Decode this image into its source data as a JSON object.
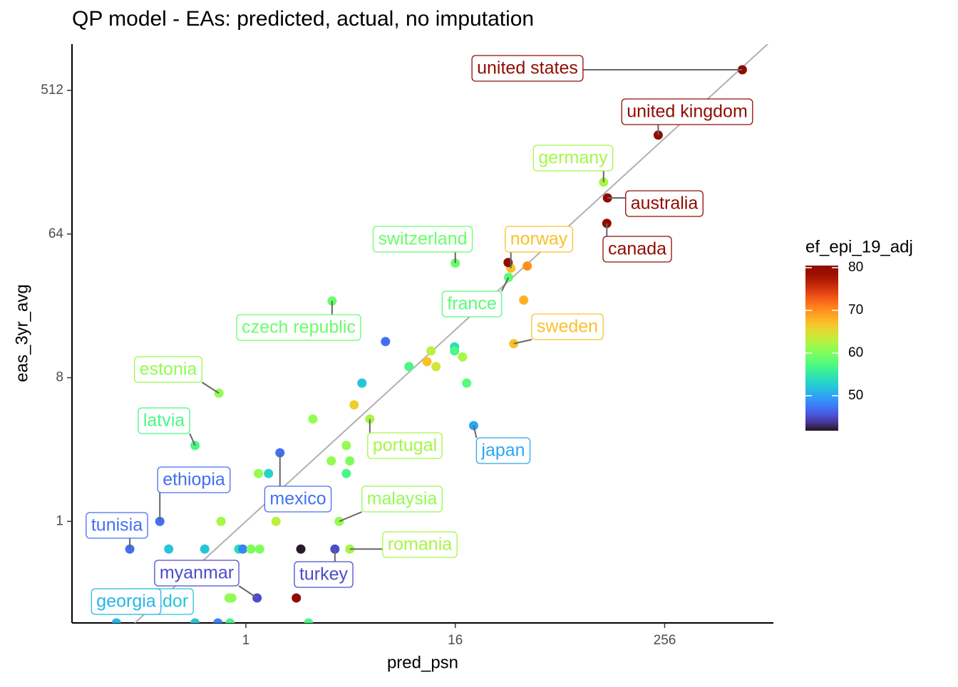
{
  "chart_data": {
    "type": "scatter",
    "title": "QP model - EAs: predicted, actual, no imputation",
    "x_label": "pred_psn",
    "y_label": "eas_3yr_avg",
    "log_x": true,
    "log_y": true,
    "identity_line": true,
    "xlim": [
      0.1,
      1080
    ],
    "ylim": [
      0.23,
      1000
    ],
    "xticks": [
      1,
      16,
      256
    ],
    "yticks": [
      1,
      8,
      64,
      512
    ],
    "x": [
      716,
      235,
      114,
      120,
      119,
      16,
      33.4,
      32.4,
      3.13,
      34.7,
      0.7,
      0.51,
      5.16,
      20.4,
      0.32,
      1.57,
      3.44,
      3.96,
      0.215,
      3.25,
      1.16,
      0.51,
      0.18,
      32.2,
      41.5,
      39.6,
      6.35,
      11.6,
      15.85,
      15.85,
      17.6,
      11.0,
      12.4,
      8.67,
      4.65,
      18.6,
      4.19,
      2.43,
      3.78,
      3.1,
      3.96,
      3.78,
      1.18,
      1.35,
      0.72,
      1.49,
      0.36,
      0.58,
      0.91,
      0.96,
      1.07,
      1.2,
      2.07,
      1.95,
      0.8,
      0.83,
      2.29,
      0.81,
      0.69
    ],
    "y": [
      690,
      268,
      135.7,
      108,
      74.7,
      42,
      39,
      34.2,
      24.3,
      13.1,
      6.4,
      3.0,
      4.4,
      4.0,
      1,
      2.7,
      1,
      0.67,
      0.67,
      0.67,
      0.33,
      0.23,
      0.23,
      42.4,
      40.3,
      24.6,
      13.5,
      11.8,
      12.5,
      11.8,
      10.8,
      10.1,
      9.4,
      9.4,
      7.4,
      7.4,
      5.4,
      4.4,
      3.0,
      2.4,
      2.4,
      2.0,
      2.0,
      2.0,
      1,
      1,
      0.67,
      0.67,
      0.67,
      0.67,
      0.67,
      0.67,
      0.67,
      0.33,
      0.33,
      0.33,
      0.23,
      0.23,
      0.23
    ],
    "color_values": [
      80,
      80,
      62,
      80,
      80,
      59,
      67,
      58,
      59,
      67,
      61,
      57,
      62,
      50,
      47,
      47,
      61,
      62,
      47,
      45,
      45,
      52,
      51,
      80,
      70,
      68,
      47,
      63,
      54,
      57,
      62,
      67,
      64,
      57,
      52,
      58,
      66,
      61,
      61,
      61,
      60,
      57,
      61,
      53,
      62,
      63,
      52,
      52,
      54,
      48,
      60,
      60,
      42,
      80,
      61,
      61,
      57,
      57,
      48
    ],
    "labels": [
      "united states",
      "united kingdom",
      "germany",
      "australia",
      "canada",
      "switzerland",
      "norway",
      "france",
      "czech republic",
      "sweden",
      "estonia",
      "latvia",
      "portugal",
      "japan",
      "ethiopia",
      "mexico",
      "malaysia",
      "romania",
      "tunisia",
      "turkey",
      "myanmar",
      "ecuador",
      "georgia",
      null,
      null,
      null,
      null,
      null,
      null,
      null,
      null,
      null,
      null,
      null,
      null,
      null,
      null,
      null,
      null,
      null,
      null,
      null,
      null,
      null,
      null,
      null,
      null,
      null,
      null,
      null,
      null,
      null,
      null,
      null,
      null,
      null,
      null,
      null,
      null
    ],
    "colorbar": {
      "title": "ef_epi_19_adj",
      "lim": [
        41.8,
        80.5
      ],
      "ticks": [
        50,
        60,
        70,
        80
      ]
    }
  }
}
